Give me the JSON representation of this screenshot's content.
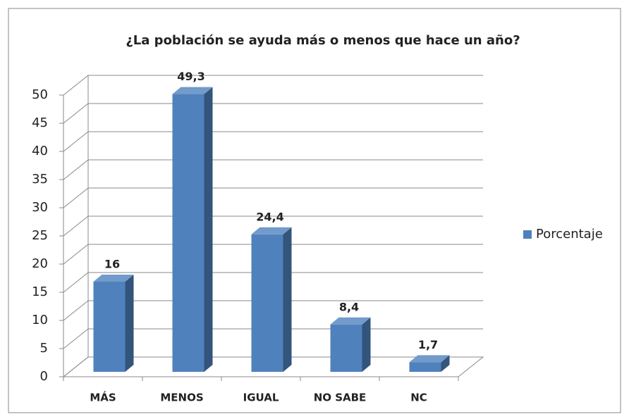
{
  "chart_data": {
    "type": "bar",
    "title": "¿La población se ayuda más o menos que hace un año?",
    "categories": [
      "MÁS",
      "MENOS",
      "IGUAL",
      "NO SABE",
      "NC"
    ],
    "series": [
      {
        "name": "Porcentaje",
        "color": "#4f81bd",
        "values": [
          16,
          49.3,
          24.4,
          8.4,
          1.7
        ],
        "value_labels": [
          "16",
          "49,3",
          "24,4",
          "8,4",
          "1,7"
        ]
      }
    ],
    "ylim": [
      0,
      50
    ],
    "yticks": [
      0,
      5,
      10,
      15,
      20,
      25,
      30,
      35,
      40,
      45,
      50
    ],
    "grid": true,
    "legend": "right"
  }
}
